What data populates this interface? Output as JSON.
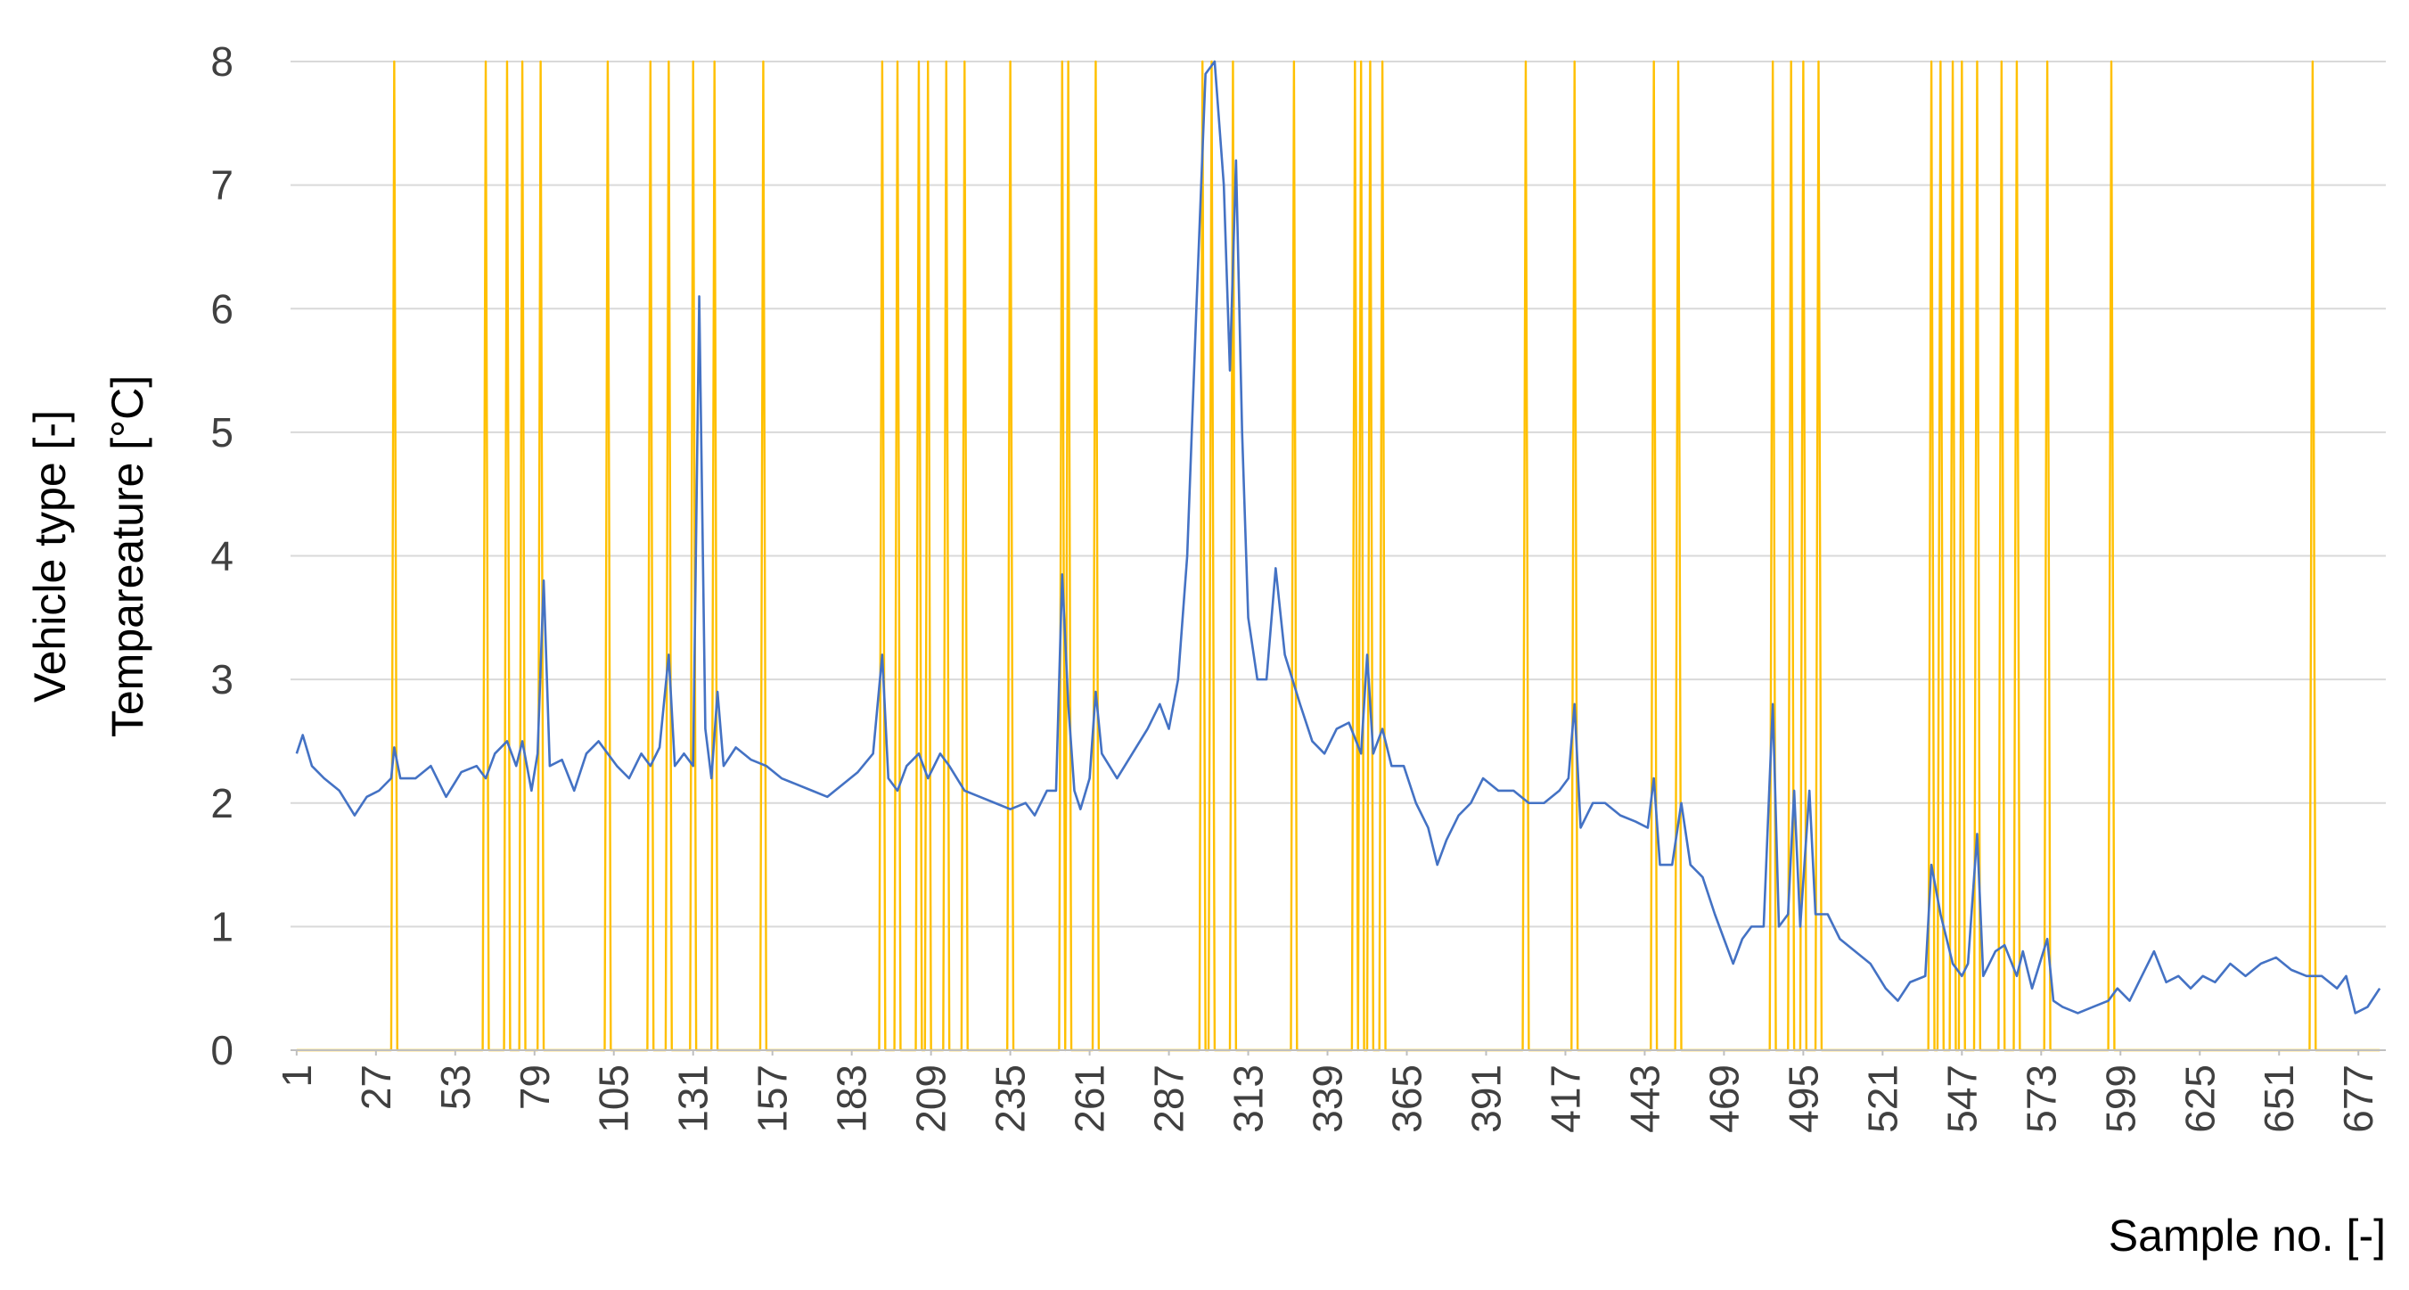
{
  "chart_data": {
    "type": "line",
    "ylabel": [
      "Vehicle type [-]",
      "Tempareature [°C]"
    ],
    "xlabel": "Sample no. [-]",
    "xlim": [
      -1,
      686
    ],
    "xticks": [
      1,
      27,
      53,
      79,
      105,
      131,
      157,
      183,
      209,
      235,
      261,
      287,
      313,
      339,
      365,
      391,
      417,
      443,
      469,
      495,
      521,
      547,
      573,
      599,
      625,
      651,
      677
    ],
    "ylim": [
      0,
      8
    ],
    "yticks": [
      0,
      1,
      2,
      3,
      4,
      5,
      6,
      7,
      8
    ],
    "grid": true,
    "series": [
      {
        "color": "#4472c4",
        "x": [
          1,
          3,
          6,
          10,
          15,
          20,
          24,
          28,
          32,
          33,
          35,
          40,
          45,
          50,
          55,
          60,
          63,
          66,
          70,
          73,
          75,
          78,
          80,
          82,
          84,
          88,
          92,
          96,
          100,
          103,
          106,
          110,
          114,
          117,
          120,
          123,
          125,
          128,
          131,
          133,
          135,
          137,
          139,
          141,
          145,
          150,
          155,
          160,
          165,
          170,
          175,
          180,
          185,
          190,
          193,
          195,
          198,
          201,
          205,
          208,
          212,
          215,
          220,
          225,
          230,
          235,
          240,
          243,
          247,
          250,
          252,
          254,
          256,
          258,
          261,
          263,
          265,
          270,
          275,
          280,
          284,
          287,
          290,
          293,
          296,
          299,
          302,
          305,
          307,
          309,
          311,
          313,
          316,
          319,
          322,
          325,
          330,
          334,
          338,
          342,
          346,
          350,
          352,
          354,
          357,
          360,
          364,
          368,
          372,
          375,
          378,
          382,
          386,
          390,
          395,
          400,
          405,
          410,
          415,
          418,
          420,
          422,
          426,
          430,
          435,
          440,
          444,
          446,
          448,
          452,
          455,
          458,
          462,
          466,
          469,
          472,
          475,
          478,
          482,
          485,
          487,
          490,
          492,
          494,
          497,
          499,
          503,
          507,
          512,
          517,
          522,
          526,
          530,
          535,
          537,
          540,
          544,
          547,
          549,
          552,
          554,
          558,
          561,
          565,
          567,
          570,
          575,
          577,
          580,
          585,
          590,
          595,
          598,
          602,
          606,
          610,
          614,
          618,
          622,
          626,
          630,
          635,
          640,
          645,
          650,
          655,
          660,
          665,
          670,
          673,
          676,
          680,
          684
        ],
        "values": [
          2.4,
          2.55,
          2.3,
          2.2,
          2.1,
          1.9,
          2.05,
          2.1,
          2.2,
          2.45,
          2.2,
          2.2,
          2.3,
          2.05,
          2.25,
          2.3,
          2.2,
          2.4,
          2.5,
          2.3,
          2.5,
          2.1,
          2.4,
          3.8,
          2.3,
          2.35,
          2.1,
          2.4,
          2.5,
          2.4,
          2.3,
          2.2,
          2.4,
          2.3,
          2.45,
          3.2,
          2.3,
          2.4,
          2.3,
          6.1,
          2.6,
          2.2,
          2.9,
          2.3,
          2.45,
          2.35,
          2.3,
          2.2,
          2.15,
          2.1,
          2.05,
          2.15,
          2.25,
          2.4,
          3.2,
          2.2,
          2.1,
          2.3,
          2.4,
          2.2,
          2.4,
          2.3,
          2.1,
          2.05,
          2.0,
          1.95,
          2.0,
          1.9,
          2.1,
          2.1,
          3.85,
          2.8,
          2.1,
          1.95,
          2.2,
          2.9,
          2.4,
          2.2,
          2.4,
          2.6,
          2.8,
          2.6,
          3.0,
          4.0,
          6.0,
          7.9,
          8.0,
          7.0,
          5.5,
          7.2,
          5.0,
          3.5,
          3.0,
          3.0,
          3.9,
          3.2,
          2.8,
          2.5,
          2.4,
          2.6,
          2.65,
          2.4,
          3.2,
          2.4,
          2.6,
          2.3,
          2.3,
          2.0,
          1.8,
          1.5,
          1.7,
          1.9,
          2.0,
          2.2,
          2.1,
          2.1,
          2.0,
          2.0,
          2.1,
          2.2,
          2.8,
          1.8,
          2.0,
          2.0,
          1.9,
          1.85,
          1.8,
          2.2,
          1.5,
          1.5,
          2.0,
          1.5,
          1.4,
          1.1,
          0.9,
          0.7,
          0.9,
          1.0,
          1.0,
          2.8,
          1.0,
          1.1,
          2.1,
          1.0,
          2.1,
          1.1,
          1.1,
          0.9,
          0.8,
          0.7,
          0.5,
          0.4,
          0.55,
          0.6,
          1.5,
          1.1,
          0.7,
          0.6,
          0.7,
          1.75,
          0.6,
          0.8,
          0.85,
          0.6,
          0.8,
          0.5,
          0.9,
          0.4,
          0.35,
          0.3,
          0.35,
          0.4,
          0.5,
          0.4,
          0.6,
          0.8,
          0.55,
          0.6,
          0.5,
          0.6,
          0.55,
          0.7,
          0.6,
          0.7,
          0.75,
          0.65,
          0.6,
          0.6,
          0.5,
          0.6,
          0.3,
          0.35,
          0.5
        ]
      },
      {
        "color": "#ffc000",
        "x": [
          1,
          32,
          33,
          34,
          62,
          63,
          64,
          69,
          70,
          71,
          74,
          75,
          76,
          80,
          81,
          82,
          102,
          103,
          104,
          116,
          117,
          118,
          122,
          123,
          124,
          130,
          131,
          132,
          137,
          138,
          139,
          153,
          154,
          155,
          192,
          193,
          194,
          197,
          198,
          199,
          204,
          205,
          206,
          207,
          208,
          209,
          213,
          214,
          215,
          219,
          220,
          221,
          234,
          235,
          236,
          251,
          252,
          253,
          253,
          254,
          255,
          262,
          263,
          264,
          297,
          298,
          299,
          300,
          301,
          302,
          307,
          308,
          309,
          327,
          328,
          329,
          347,
          348,
          349,
          349,
          350,
          351,
          352,
          353,
          354,
          356,
          357,
          358,
          403,
          404,
          405,
          419,
          420,
          421,
          445,
          446,
          447,
          453,
          454,
          455,
          484,
          485,
          486,
          490,
          491,
          492,
          494,
          495,
          496,
          499,
          500,
          501,
          536,
          537,
          538,
          539,
          540,
          541,
          543,
          544,
          545,
          546,
          547,
          548,
          551,
          552,
          553,
          559,
          560,
          561,
          564,
          565,
          566,
          574,
          575,
          576,
          595,
          596,
          597,
          661,
          662,
          663,
          684
        ],
        "values": [
          0,
          0,
          8,
          0,
          0,
          8,
          0,
          0,
          8,
          0,
          0,
          8,
          0,
          0,
          8,
          0,
          0,
          8,
          0,
          0,
          8,
          0,
          0,
          8,
          0,
          0,
          8,
          0,
          0,
          8,
          0,
          0,
          8,
          0,
          0,
          8,
          0,
          0,
          8,
          0,
          0,
          8,
          0,
          0,
          8,
          0,
          0,
          8,
          0,
          0,
          8,
          0,
          0,
          8,
          0,
          0,
          8,
          0,
          0,
          8,
          0,
          0,
          8,
          0,
          0,
          8,
          0,
          0,
          8,
          0,
          0,
          8,
          0,
          0,
          8,
          0,
          0,
          8,
          0,
          0,
          8,
          0,
          0,
          8,
          0,
          0,
          8,
          0,
          0,
          8,
          0,
          0,
          8,
          0,
          0,
          8,
          0,
          0,
          8,
          0,
          0,
          8,
          0,
          0,
          8,
          0,
          0,
          8,
          0,
          0,
          8,
          0,
          0,
          8,
          0,
          0,
          8,
          0,
          0,
          8,
          0,
          0,
          8,
          0,
          0,
          8,
          0,
          0,
          8,
          0,
          0,
          8,
          0,
          0,
          8,
          0,
          0,
          8,
          0,
          0,
          8,
          0,
          0
        ]
      }
    ]
  }
}
